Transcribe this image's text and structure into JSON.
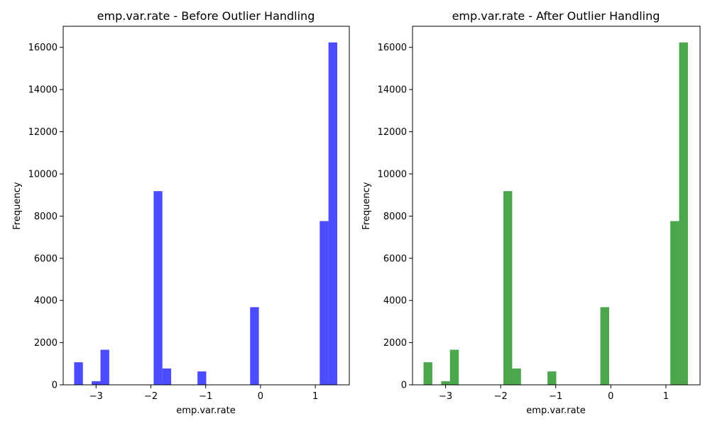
{
  "chart_data": [
    {
      "type": "bar",
      "title": "emp.var.rate - Before Outlier Handling",
      "xlabel": "emp.var.rate",
      "ylabel": "Frequency",
      "color": "#0000ff",
      "xlim": [
        -3.6,
        1.62
      ],
      "ylim": [
        0,
        17000
      ],
      "x_ticks": [
        -3,
        -2,
        -1,
        0,
        1
      ],
      "x_tick_labels": [
        "−3",
        "−2",
        "−1",
        "0",
        "1"
      ],
      "y_ticks": [
        0,
        2000,
        4000,
        6000,
        8000,
        10000,
        12000,
        14000,
        16000
      ],
      "y_tick_labels": [
        "0",
        "2000",
        "4000",
        "6000",
        "8000",
        "10000",
        "12000",
        "14000",
        "16000"
      ],
      "bins": [
        {
          "x0": -3.4,
          "x1": -3.24,
          "count": 1070
        },
        {
          "x0": -3.08,
          "x1": -2.92,
          "count": 172
        },
        {
          "x0": -2.92,
          "x1": -2.76,
          "count": 1663
        },
        {
          "x0": -1.95,
          "x1": -1.79,
          "count": 9184
        },
        {
          "x0": -1.79,
          "x1": -1.63,
          "count": 773
        },
        {
          "x0": -1.15,
          "x1": -0.99,
          "count": 635
        },
        {
          "x0": -0.35,
          "x1": -0.19,
          "count": 10
        },
        {
          "x0": -0.19,
          "x1": -0.03,
          "count": 3683
        },
        {
          "x0": 1.08,
          "x1": 1.24,
          "count": 7763
        },
        {
          "x0": 1.24,
          "x1": 1.4,
          "count": 16234
        }
      ]
    },
    {
      "type": "bar",
      "title": "emp.var.rate - After Outlier Handling",
      "xlabel": "emp.var.rate",
      "ylabel": "Frequency",
      "color": "#008000",
      "xlim": [
        -3.6,
        1.62
      ],
      "ylim": [
        0,
        17000
      ],
      "x_ticks": [
        -3,
        -2,
        -1,
        0,
        1
      ],
      "x_tick_labels": [
        "−3",
        "−2",
        "−1",
        "0",
        "1"
      ],
      "y_ticks": [
        0,
        2000,
        4000,
        6000,
        8000,
        10000,
        12000,
        14000,
        16000
      ],
      "y_tick_labels": [
        "0",
        "2000",
        "4000",
        "6000",
        "8000",
        "10000",
        "12000",
        "14000",
        "16000"
      ],
      "bins": [
        {
          "x0": -3.4,
          "x1": -3.24,
          "count": 1070
        },
        {
          "x0": -3.08,
          "x1": -2.92,
          "count": 172
        },
        {
          "x0": -2.92,
          "x1": -2.76,
          "count": 1663
        },
        {
          "x0": -1.95,
          "x1": -1.79,
          "count": 9184
        },
        {
          "x0": -1.79,
          "x1": -1.63,
          "count": 773
        },
        {
          "x0": -1.15,
          "x1": -0.99,
          "count": 635
        },
        {
          "x0": -0.35,
          "x1": -0.19,
          "count": 10
        },
        {
          "x0": -0.19,
          "x1": -0.03,
          "count": 3683
        },
        {
          "x0": 1.08,
          "x1": 1.24,
          "count": 7763
        },
        {
          "x0": 1.24,
          "x1": 1.4,
          "count": 16234
        }
      ]
    }
  ]
}
